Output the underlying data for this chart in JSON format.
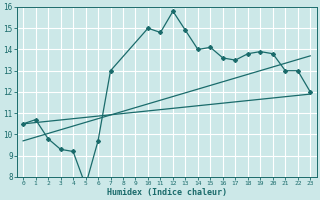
{
  "xlabel": "Humidex (Indice chaleur)",
  "xlim": [
    0,
    23
  ],
  "ylim": [
    8,
    16
  ],
  "yticks": [
    8,
    9,
    10,
    11,
    12,
    13,
    14,
    15,
    16
  ],
  "xticks": [
    0,
    1,
    2,
    3,
    4,
    5,
    6,
    7,
    8,
    9,
    10,
    11,
    12,
    13,
    14,
    15,
    16,
    17,
    18,
    19,
    20,
    21,
    22,
    23
  ],
  "bg_color": "#cce8e8",
  "grid_color": "#b0d8d8",
  "line_color": "#1a6b6b",
  "line1_x": [
    0,
    1,
    2,
    3,
    4,
    5,
    6,
    7,
    10,
    11,
    12,
    13,
    14,
    15,
    16,
    17,
    18,
    19,
    20,
    21,
    22,
    23
  ],
  "line1_y": [
    10.5,
    10.7,
    9.8,
    9.3,
    9.2,
    7.6,
    9.7,
    13.0,
    15.0,
    14.8,
    15.8,
    14.9,
    14.0,
    14.1,
    13.6,
    13.5,
    13.8,
    13.9,
    13.8,
    13.0,
    13.0,
    12.0
  ],
  "line2_x": [
    0,
    23
  ],
  "line2_y": [
    10.5,
    11.9
  ],
  "line3_x": [
    0,
    23
  ],
  "line3_y": [
    9.7,
    13.7
  ]
}
